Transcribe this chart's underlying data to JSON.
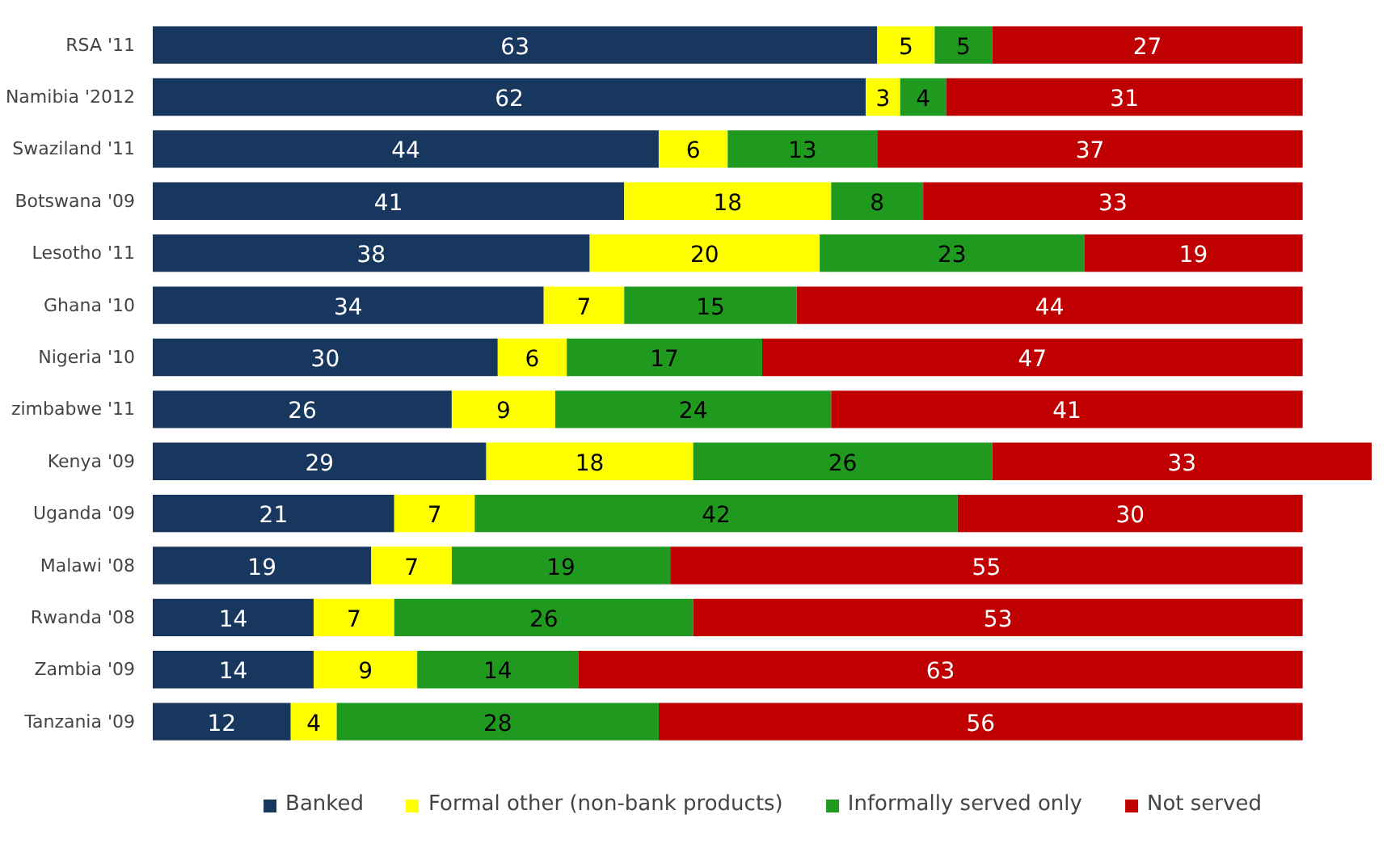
{
  "chart_data": {
    "type": "bar",
    "orientation": "horizontal",
    "stacked": true,
    "data_labels": true,
    "legend": "bottom",
    "grid": false,
    "tick_labels": "y",
    "xlim": [
      0,
      106
    ],
    "categories": [
      "RSA '11",
      "Namibia '2012",
      "Swaziland '11",
      "Botswana '09",
      "Lesotho '11",
      "Ghana '10",
      "Nigeria '10",
      "zimbabwe '11",
      "Kenya '09",
      "Uganda '09",
      "Malawi '08",
      "Rwanda '08",
      "Zambia '09",
      "Tanzania '09"
    ],
    "series": [
      {
        "name": "Banked",
        "color": "#17375e",
        "values": [
          63,
          62,
          44,
          41,
          38,
          34,
          30,
          26,
          29,
          21,
          19,
          14,
          14,
          12
        ]
      },
      {
        "name": "Formal other (non-bank products)",
        "color": "#ffff00",
        "values": [
          5,
          3,
          6,
          18,
          20,
          7,
          6,
          9,
          18,
          7,
          7,
          7,
          9,
          4
        ]
      },
      {
        "name": "Informally served only",
        "color": "#1f9a1f",
        "values": [
          5,
          4,
          13,
          8,
          23,
          15,
          17,
          24,
          26,
          42,
          19,
          26,
          14,
          28
        ]
      },
      {
        "name": "Not served",
        "color": "#c00000",
        "values": [
          27,
          31,
          37,
          33,
          19,
          44,
          47,
          41,
          33,
          30,
          55,
          53,
          63,
          56
        ]
      }
    ]
  }
}
